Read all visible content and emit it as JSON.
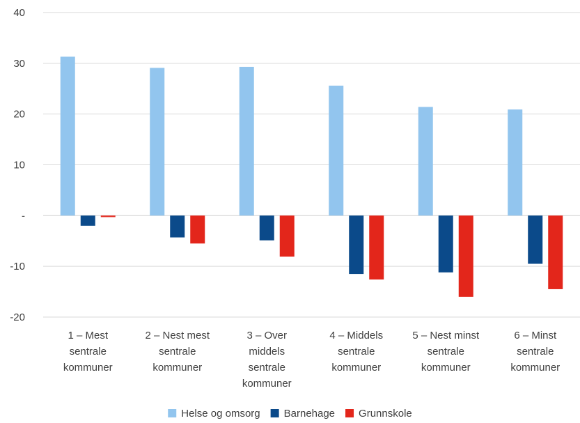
{
  "chart_data": {
    "type": "bar",
    "title": "",
    "xlabel": "",
    "ylabel": "",
    "ylim": [
      -20,
      40
    ],
    "yticks": [
      {
        "value": 40,
        "label": "40"
      },
      {
        "value": 30,
        "label": "30"
      },
      {
        "value": 20,
        "label": "20"
      },
      {
        "value": 10,
        "label": "10"
      },
      {
        "value": 0,
        "label": "-"
      },
      {
        "value": -10,
        "label": "-10"
      },
      {
        "value": -20,
        "label": "-20"
      }
    ],
    "grid": true,
    "legend_position": "bottom",
    "categories": [
      [
        "1 – Mest",
        "sentrale",
        "kommuner"
      ],
      [
        "2 – Nest mest",
        "sentrale",
        "kommuner"
      ],
      [
        "3 – Over",
        "middels",
        "sentrale",
        "kommuner"
      ],
      [
        "4 – Middels",
        "sentrale",
        "kommuner"
      ],
      [
        "5 – Nest minst",
        "sentrale",
        "kommuner"
      ],
      [
        "6 – Minst",
        "sentrale",
        "kommuner"
      ]
    ],
    "series": [
      {
        "name": "Helse og omsorg",
        "color": "#92c5ee",
        "values": [
          31.3,
          29.1,
          29.3,
          25.6,
          21.4,
          20.9
        ]
      },
      {
        "name": "Barnehage",
        "color": "#0b4a8a",
        "values": [
          -2.0,
          -4.3,
          -4.9,
          -11.5,
          -11.2,
          -9.5
        ]
      },
      {
        "name": "Grunnskole",
        "color": "#e3261b",
        "values": [
          -0.3,
          -5.5,
          -8.1,
          -12.6,
          -16.0,
          -14.5
        ]
      }
    ]
  }
}
